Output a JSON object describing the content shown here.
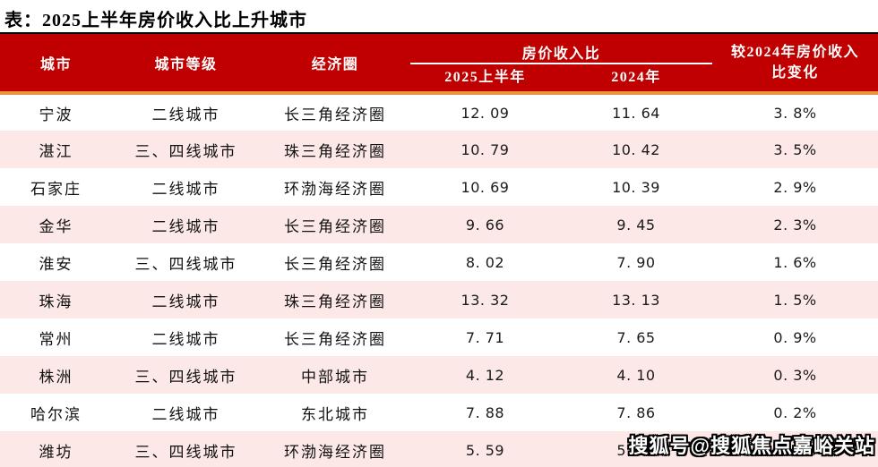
{
  "title": "表：2025上半年房价收入比上升城市",
  "watermark": "搜狐号@搜狐焦点嘉峪关站",
  "colors": {
    "header_bg": "#C00000",
    "header_text": "#FFFFFF",
    "top_line": "#000000",
    "accent_line": "#E8953F",
    "row_alt": "#FCE9E7"
  },
  "table": {
    "header": {
      "col_city": "城市",
      "col_tier": "城市等级",
      "col_region": "经济圈",
      "group_ratio": "房价收入比",
      "sub_2025": "2025上半年",
      "sub_2024": "2024年",
      "col_change_line1": "较2024年房价收入",
      "col_change_line2": "比变化"
    },
    "cell_names": [
      "city-cell",
      "tier-cell",
      "region-cell",
      "ratio-2025-cell",
      "ratio-2024-cell",
      "change-cell"
    ],
    "rows": [
      [
        "宁波",
        "二线城市",
        "长三角经济圈",
        "12. 09",
        "11. 64",
        "3. 8%"
      ],
      [
        "湛江",
        "三、四线城市",
        "珠三角经济圈",
        "10. 79",
        "10. 42",
        "3. 5%"
      ],
      [
        "石家庄",
        "二线城市",
        "环渤海经济圈",
        "10. 69",
        "10. 39",
        "2. 9%"
      ],
      [
        "金华",
        "二线城市",
        "长三角经济圈",
        "9. 66",
        "9. 45",
        "2. 3%"
      ],
      [
        "淮安",
        "三、四线城市",
        "长三角经济圈",
        "8. 02",
        "7. 90",
        "1. 6%"
      ],
      [
        "珠海",
        "二线城市",
        "珠三角经济圈",
        "13. 32",
        "13. 13",
        "1. 5%"
      ],
      [
        "常州",
        "二线城市",
        "长三角经济圈",
        "7. 71",
        "7. 65",
        "0. 9%"
      ],
      [
        "株洲",
        "三、四线城市",
        "中部城市",
        "4. 12",
        "4. 10",
        "0. 3%"
      ],
      [
        "哈尔滨",
        "二线城市",
        "东北城市",
        "7. 88",
        "7. 86",
        "0. 2%"
      ],
      [
        "潍坊",
        "三、四线城市",
        "环渤海经济圈",
        "5. 59",
        "5. 58",
        "0. 2%"
      ]
    ]
  },
  "chart_data": {
    "type": "table",
    "title": "2025上半年房价收入比上升城市",
    "column_groups": [
      {
        "label": "房价收入比",
        "columns": [
          "2025上半年",
          "2024年"
        ]
      }
    ],
    "columns": [
      "城市",
      "城市等级",
      "经济圈",
      "房价收入比 2025上半年",
      "房价收入比 2024年",
      "较2024年房价收入比变化"
    ],
    "rows": [
      [
        "宁波",
        "二线城市",
        "长三角经济圈",
        12.09,
        11.64,
        "3.8%"
      ],
      [
        "湛江",
        "三、四线城市",
        "珠三角经济圈",
        10.79,
        10.42,
        "3.5%"
      ],
      [
        "石家庄",
        "二线城市",
        "环渤海经济圈",
        10.69,
        10.39,
        "2.9%"
      ],
      [
        "金华",
        "二线城市",
        "长三角经济圈",
        9.66,
        9.45,
        "2.3%"
      ],
      [
        "淮安",
        "三、四线城市",
        "长三角经济圈",
        8.02,
        7.9,
        "1.6%"
      ],
      [
        "珠海",
        "二线城市",
        "珠三角经济圈",
        13.32,
        13.13,
        "1.5%"
      ],
      [
        "常州",
        "二线城市",
        "长三角经济圈",
        7.71,
        7.65,
        "0.9%"
      ],
      [
        "株洲",
        "三、四线城市",
        "中部城市",
        4.12,
        4.1,
        "0.3%"
      ],
      [
        "哈尔滨",
        "二线城市",
        "东北城市",
        7.88,
        7.86,
        "0.2%"
      ],
      [
        "潍坊",
        "三、四线城市",
        "环渤海经济圈",
        5.59,
        5.58,
        "0.2%"
      ]
    ]
  }
}
